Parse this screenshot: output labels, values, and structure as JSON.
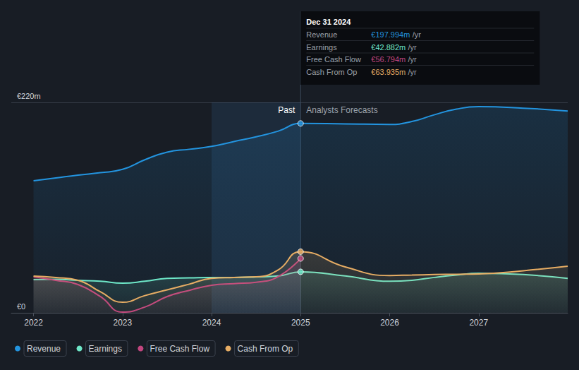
{
  "chart_data": {
    "type": "line",
    "x": [
      2022,
      2022.25,
      2022.5,
      2022.75,
      2023,
      2023.25,
      2023.5,
      2023.75,
      2024,
      2024.25,
      2024.5,
      2024.75,
      2025,
      2025.5,
      2026,
      2026.25,
      2026.5,
      2026.75,
      2027,
      2027.5,
      2028
    ],
    "xlim": [
      2021.75,
      2028
    ],
    "xticks": [
      2022,
      2023,
      2024,
      2025,
      2026,
      2027
    ],
    "ylim": [
      0,
      220
    ],
    "yticks": [
      {
        "value": 0,
        "label": "€0"
      },
      {
        "value": 220,
        "label": "€220m"
      }
    ],
    "grid": true,
    "legend": "bottom",
    "series": [
      {
        "name": "Revenue",
        "color": "#2394df",
        "values": [
          138,
          141,
          144,
          146.5,
          150,
          160,
          168,
          171,
          174,
          179,
          184,
          190,
          197.994,
          197.5,
          197,
          200,
          207,
          213,
          215.5,
          214,
          211
        ]
      },
      {
        "name": "Earnings",
        "color": "#6ee7c8",
        "values": [
          34.7,
          35,
          34,
          33,
          31,
          33,
          36,
          36.5,
          37,
          37,
          37.5,
          38.5,
          42.882,
          38.5,
          33,
          34,
          37,
          39.5,
          41.3,
          40,
          36
        ]
      },
      {
        "name": "Free Cash Flow",
        "color": "#c2467f",
        "values": [
          37.6,
          34,
          29.5,
          17,
          0.7,
          6,
          17,
          23.5,
          28.8,
          30.5,
          32,
          38,
          56.794,
          null,
          null,
          null,
          null,
          null,
          null,
          null,
          null
        ]
      },
      {
        "name": "Cash From Op",
        "color": "#e7ad64",
        "values": [
          38.4,
          37,
          34,
          22,
          11,
          18,
          24,
          30,
          36,
          37,
          37.6,
          45,
          63.935,
          48,
          39,
          39.5,
          40,
          40.3,
          40.6,
          44,
          48.7
        ]
      }
    ],
    "highlight": [
      2024,
      2025
    ],
    "annotations": [
      {
        "text": "Past",
        "x": 2025
      },
      {
        "text": "Analysts Forecasts",
        "x": 2025
      }
    ],
    "tooltip": {
      "title": "Dec 31 2024",
      "x": 2025,
      "unit": "/yr",
      "rows": [
        {
          "name": "Revenue",
          "value": 197.994,
          "label": "€197.994m"
        },
        {
          "name": "Earnings",
          "value": 42.882,
          "label": "€42.882m"
        },
        {
          "name": "Free Cash Flow",
          "value": 56.794,
          "label": "€56.794m"
        },
        {
          "name": "Cash From Op",
          "value": 63.935,
          "label": "€63.935m"
        }
      ]
    }
  }
}
